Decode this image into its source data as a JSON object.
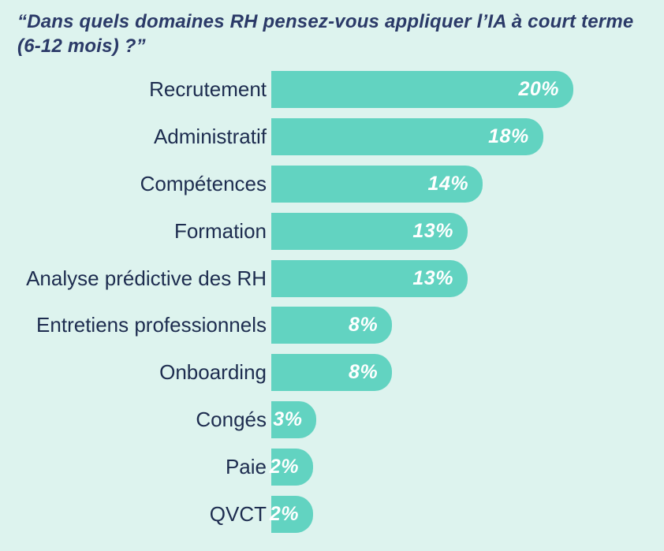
{
  "header": {
    "title_line1": "“Dans quels domaines RH pensez-vous appliquer l’IA à court terme",
    "title_line2": "(6-12 mois) ?”"
  },
  "chart_data": {
    "type": "bar",
    "orientation": "horizontal",
    "title": "“Dans quels domaines RH pensez-vous appliquer l’IA à court terme (6-12 mois) ?”",
    "categories": [
      "Recrutement",
      "Administratif",
      "Compétences",
      "Formation",
      "Analyse prédictive des RH",
      "Entretiens professionnels",
      "Onboarding",
      "Congés",
      "Paie",
      "QVCT"
    ],
    "values": [
      20,
      18,
      14,
      13,
      13,
      8,
      8,
      3,
      2,
      2
    ],
    "value_labels": [
      "20%",
      "18%",
      "14%",
      "13%",
      "13%",
      "8%",
      "8%",
      "3%",
      "2%",
      "2%"
    ],
    "unit": "%",
    "xlim": [
      0,
      20
    ],
    "grid": false,
    "legend": false,
    "value_label_position": "inside-end",
    "colors": {
      "background": "#ddf3ee",
      "bar": "#62d3c1",
      "title_text": "#2b3a68",
      "label_text": "#1d2c4f",
      "value_text": "#ffffff"
    }
  }
}
